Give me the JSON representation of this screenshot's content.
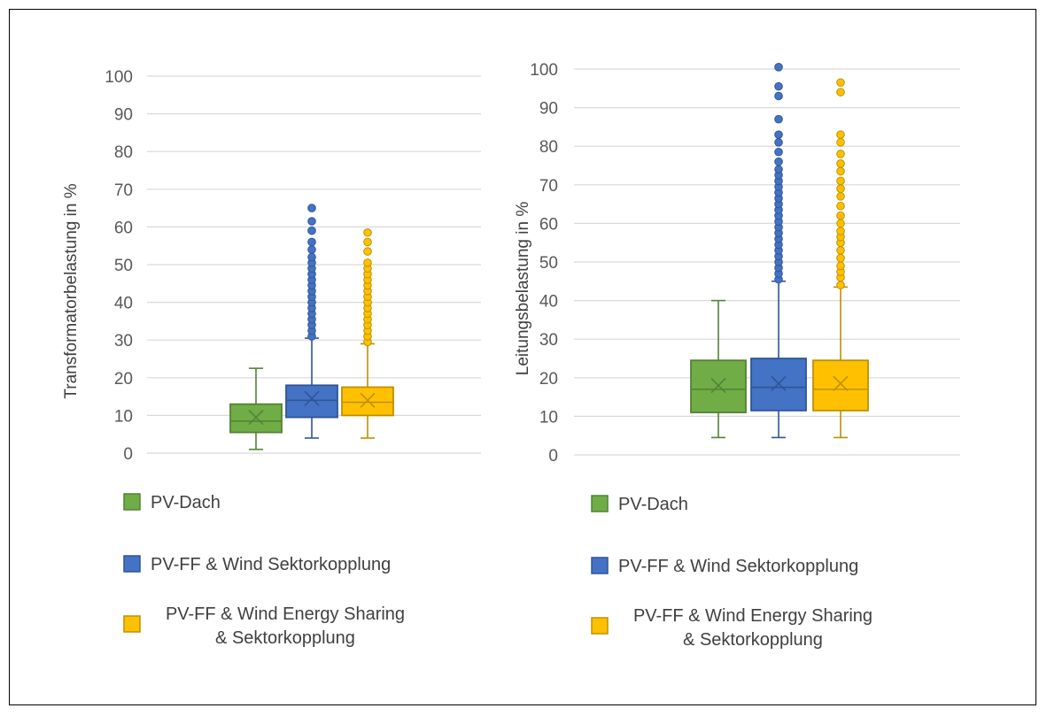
{
  "chart_data": [
    {
      "type": "box",
      "ylabel": "Transformatorbelastung in %",
      "ylim": [
        0,
        100
      ],
      "yticks": [
        0,
        10,
        20,
        30,
        40,
        50,
        60,
        70,
        80,
        90,
        100
      ],
      "grid": true,
      "legend_position": "bottom",
      "series": [
        {
          "name": "PV-Dach",
          "color": "#70ad47",
          "stroke": "#548235",
          "min": 1,
          "q1": 5.5,
          "median": 8.5,
          "q3": 13,
          "max": 22.5,
          "mean": 9.5,
          "outliers": []
        },
        {
          "name": "PV-FF & Wind Sektorkopplung",
          "color": "#4472c4",
          "stroke": "#2f5597",
          "min": 4,
          "q1": 9.5,
          "median": 14,
          "q3": 18,
          "max": 30.5,
          "mean": 14.5,
          "outliers": [
            31,
            32.5,
            34,
            35.5,
            37,
            38.5,
            40,
            41.5,
            43,
            44.5,
            46,
            47.5,
            49,
            50.5,
            52,
            54,
            56,
            59,
            61.5,
            65
          ]
        },
        {
          "name": "PV-FF & Wind Energy Sharing & Sektorkopplung",
          "color": "#ffc000",
          "stroke": "#bf9000",
          "min": 4,
          "q1": 10,
          "median": 13.5,
          "q3": 17.5,
          "max": 29,
          "mean": 14,
          "outliers": [
            29.5,
            31,
            32.5,
            34,
            35.5,
            37,
            38.5,
            40,
            41.5,
            43,
            44.5,
            46,
            47.5,
            49,
            50.5,
            53.5,
            56,
            58.5
          ]
        }
      ]
    },
    {
      "type": "box",
      "ylabel": "Leitungsbelastung in %",
      "ylim": [
        0,
        100
      ],
      "yticks": [
        0,
        10,
        20,
        30,
        40,
        50,
        60,
        70,
        80,
        90,
        100
      ],
      "grid": true,
      "legend_position": "bottom",
      "series": [
        {
          "name": "PV-Dach",
          "color": "#70ad47",
          "stroke": "#548235",
          "min": 4.5,
          "q1": 11,
          "median": 17,
          "q3": 24.5,
          "max": 40,
          "mean": 18,
          "outliers": []
        },
        {
          "name": "PV-FF & Wind Sektorkopplung",
          "color": "#4472c4",
          "stroke": "#2f5597",
          "min": 4.5,
          "q1": 11.5,
          "median": 17.5,
          "q3": 25,
          "max": 45,
          "mean": 18.5,
          "outliers": [
            45.5,
            47,
            48.5,
            50,
            51.5,
            53,
            54.5,
            56,
            57.5,
            59,
            60.5,
            62,
            63.5,
            65,
            66.5,
            68,
            69.5,
            71,
            72.5,
            74,
            76,
            78.5,
            81,
            83,
            87,
            93,
            95.5,
            100.5
          ]
        },
        {
          "name": "PV-FF & Wind Energy Sharing & Sektorkopplung",
          "color": "#ffc000",
          "stroke": "#bf9000",
          "min": 4.5,
          "q1": 11.5,
          "median": 17,
          "q3": 24.5,
          "max": 43.5,
          "mean": 18.5,
          "outliers": [
            44,
            46,
            47.5,
            49,
            51,
            53,
            55,
            56.5,
            58,
            60,
            62,
            64.5,
            67,
            69,
            71,
            73.5,
            75.5,
            78,
            81,
            83,
            94,
            96.5
          ]
        }
      ]
    }
  ]
}
